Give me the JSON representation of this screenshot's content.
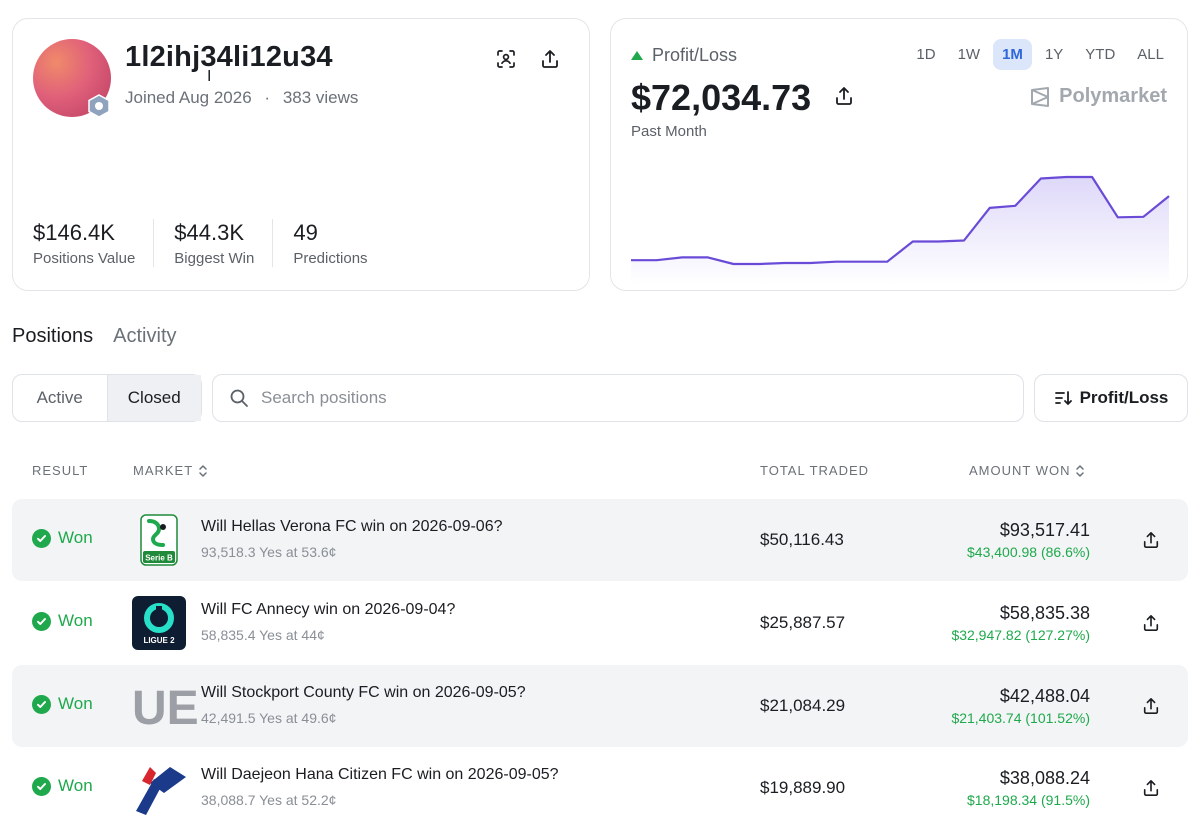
{
  "profile": {
    "username": "1l2ihj34li12u34",
    "joined": "Joined Aug 2026",
    "separator": "·",
    "views": "383 views",
    "stats": [
      {
        "value": "$146.4K",
        "label": "Positions Value"
      },
      {
        "value": "$44.3K",
        "label": "Biggest Win"
      },
      {
        "value": "49",
        "label": "Predictions"
      }
    ]
  },
  "pnl": {
    "label": "Profit/Loss",
    "amount": "$72,034.73",
    "period": "Past Month",
    "ranges": [
      "1D",
      "1W",
      "1M",
      "1Y",
      "YTD",
      "ALL"
    ],
    "active_range": "1M",
    "brand": "Polymarket",
    "trend": "up",
    "accent_color": "#1fa94c",
    "line_color": "#6a4bd8"
  },
  "chart_data": {
    "type": "area",
    "title": "",
    "xlabel": "",
    "ylabel": "",
    "grid": false,
    "series": [
      {
        "values": [
          0.5,
          0.5,
          1.6,
          1.6,
          -1.0,
          -1.0,
          -0.6,
          -0.6,
          -0.1,
          -0.1,
          -0.1,
          7.8,
          7.8,
          8.2,
          21.0,
          21.8,
          32.5,
          33.1,
          33.1,
          17.3,
          17.5,
          25.6
        ]
      }
    ]
  },
  "tabs": {
    "items": [
      "Positions",
      "Activity"
    ],
    "active": "Positions"
  },
  "filters": {
    "segments": [
      "Active",
      "Closed"
    ],
    "active_segment": "Closed",
    "search_placeholder": "Search positions",
    "sort_label": "Profit/Loss"
  },
  "table": {
    "headers": {
      "result": "RESULT",
      "market": "MARKET",
      "total_traded": "TOTAL TRADED",
      "amount_won": "AMOUNT WON"
    },
    "rows": [
      {
        "result": "Won",
        "logo": "serie-b",
        "title": "Will Hellas Verona FC win on 2026-09-06?",
        "subtitle": "93,518.3 Yes at 53.6¢",
        "traded": "$50,116.43",
        "won": "$93,517.41",
        "gain": "$43,400.98 (86.6%)"
      },
      {
        "result": "Won",
        "logo": "ligue-2",
        "logo_text": "LIGUE 2",
        "title": "Will FC Annecy win on 2026-09-04?",
        "subtitle": "58,835.4 Yes at 44¢",
        "traded": "$25,887.57",
        "won": "$58,835.38",
        "gain": "$32,947.82 (127.27%)"
      },
      {
        "result": "Won",
        "logo": "efl",
        "logo_text": "UE",
        "title": "Will Stockport County FC win on 2026-09-05?",
        "subtitle": "42,491.5 Yes at 49.6¢",
        "traded": "$21,084.29",
        "won": "$42,488.04",
        "gain": "$21,403.74 (101.52%)"
      },
      {
        "result": "Won",
        "logo": "k-league",
        "title": "Will Daejeon Hana Citizen FC win on 2026-09-05?",
        "subtitle": "38,088.7 Yes at 52.2¢",
        "traded": "$19,889.90",
        "won": "$38,088.24",
        "gain": "$18,198.34 (91.5%)"
      }
    ]
  }
}
